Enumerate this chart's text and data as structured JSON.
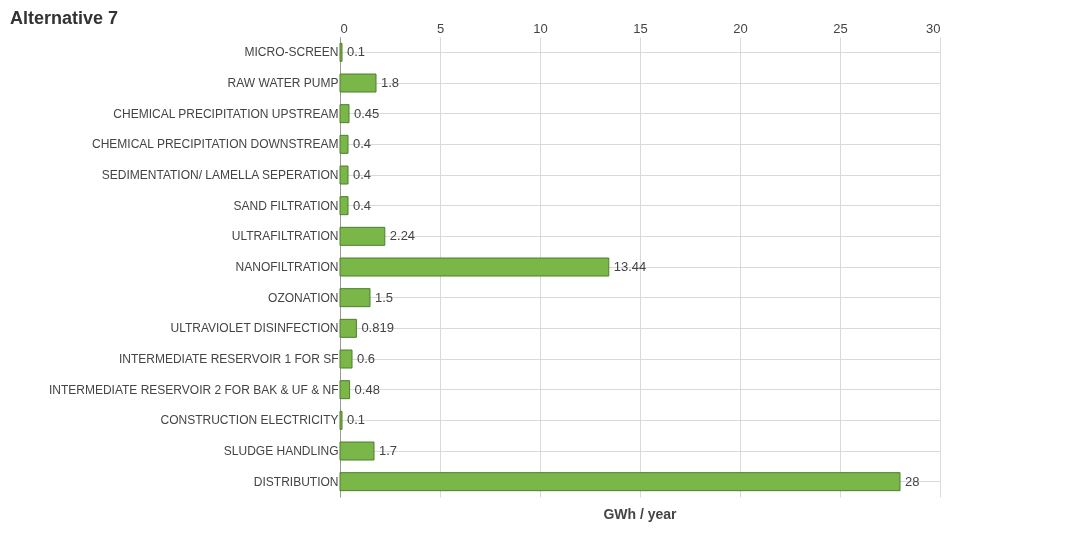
{
  "chart_data": {
    "type": "bar",
    "orientation": "horizontal",
    "title": "Alternative 7",
    "xlabel": "GWh / year",
    "categories": [
      "MICRO-SCREEN",
      "RAW WATER PUMP",
      "CHEMICAL PRECIPITATION UPSTREAM",
      "CHEMICAL PRECIPITATION DOWNSTREAM",
      "SEDIMENTATION/ LAMELLA SEPERATION",
      "SAND FILTRATION",
      "ULTRAFILTRATION",
      "NANOFILTRATION",
      "OZONATION",
      "ULTRAVIOLET DISINFECTION",
      "INTERMEDIATE RESERVOIR 1 FOR SF",
      "INTERMEDIATE RESERVOIR 2 FOR BAK & UF & NF",
      "CONSTRUCTION ELECTRICITY",
      "SLUDGE HANDLING",
      "DISTRIBUTION"
    ],
    "values": [
      0.1,
      1.8,
      0.45,
      0.4,
      0.4,
      0.4,
      2.24,
      13.44,
      1.5,
      0.819,
      0.6,
      0.48,
      0.1,
      1.7,
      28
    ],
    "color": "#7ab648",
    "xlim": [
      0,
      30
    ],
    "xticks": [
      0,
      5,
      10,
      15,
      20,
      25,
      30
    ],
    "grid": true,
    "data_labels": true
  }
}
